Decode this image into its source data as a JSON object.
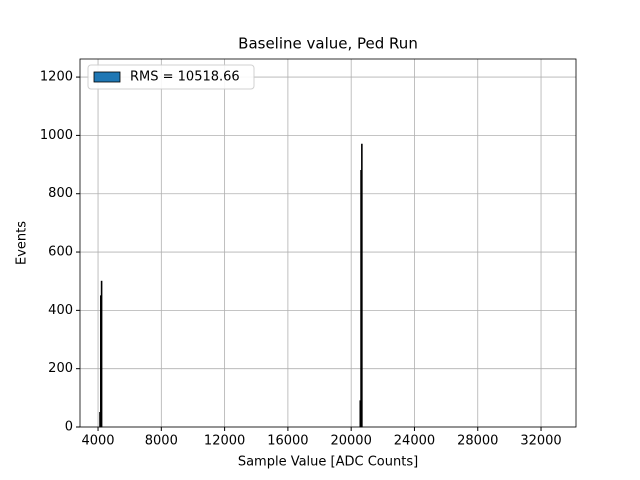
{
  "chart_data": {
    "type": "histogram",
    "title": "Baseline value, Ped Run",
    "xlabel": "Sample Value [ADC Counts]",
    "ylabel": "Events",
    "bins": [
      4100,
      4150,
      4200,
      4250,
      20550,
      20600,
      20650,
      20700,
      32768
    ],
    "series": [
      {
        "name": "RMS = 10518.66",
        "color": "#1f77b4",
        "values": [
          50,
          450,
          500,
          0,
          90,
          880,
          970,
          0
        ]
      }
    ],
    "xlim": [
      2860,
      34210
    ],
    "ylim": [
      0,
      1262
    ],
    "xticks": [
      4000,
      8000,
      12000,
      16000,
      20000,
      24000,
      28000,
      32000
    ],
    "yticks": [
      0,
      200,
      400,
      600,
      800,
      1000,
      1200
    ],
    "grid": true,
    "legend": "upper left"
  }
}
